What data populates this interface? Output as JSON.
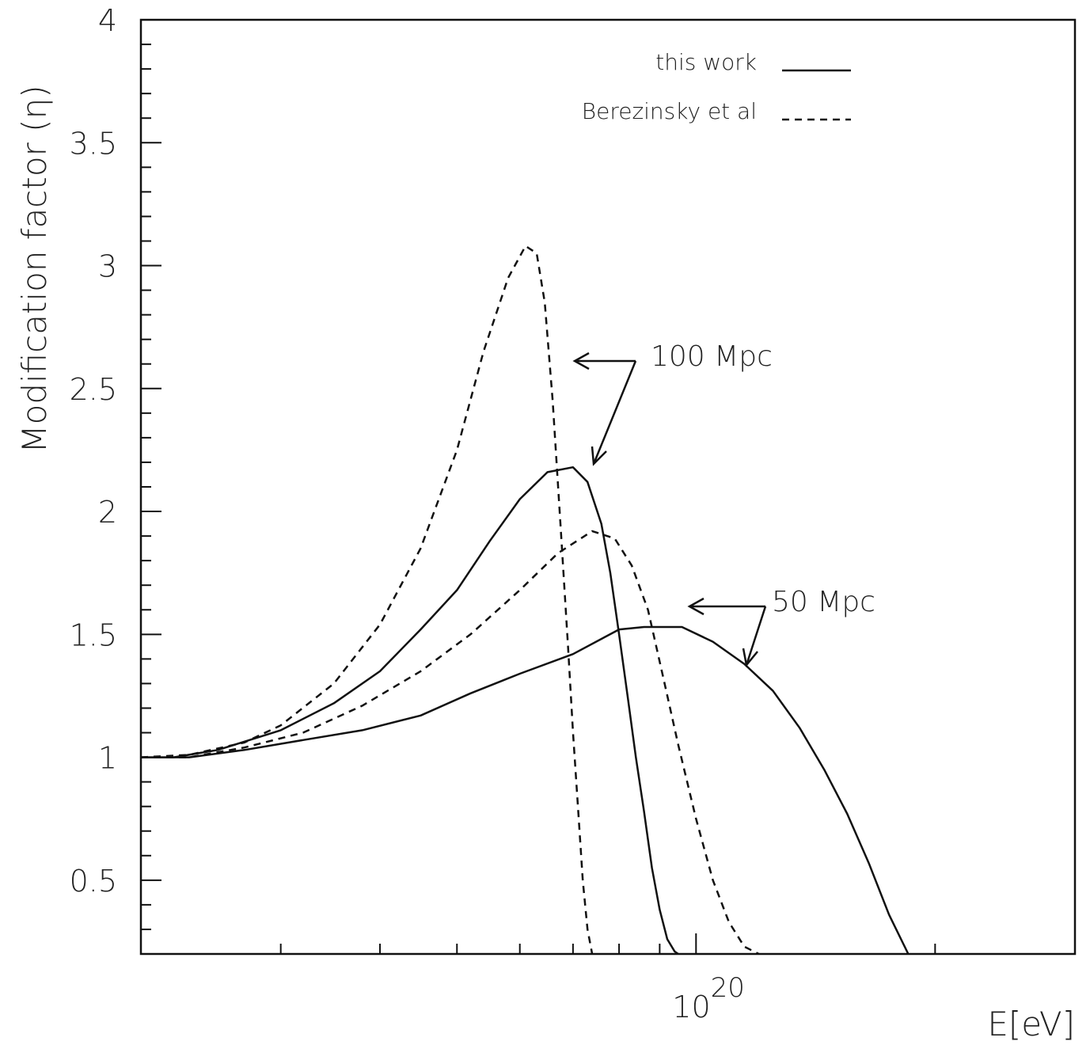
{
  "chart_data": {
    "type": "line",
    "xscale": "log",
    "xlim": [
      2e+19,
      3e+20
    ],
    "ylim": [
      0.2,
      4.0
    ],
    "grid": false,
    "legend_placement": "top-right",
    "xlabel": "E[eV]",
    "ylabel": "Modification factor (η)",
    "x_tick_label": {
      "base": "10",
      "exponent": "20",
      "value": 1e+20
    },
    "y_ticks": [
      0.5,
      1,
      1.5,
      2,
      2.5,
      3,
      3.5,
      4
    ],
    "y_tick_labels": [
      "0.5",
      "1",
      "1.5",
      "2",
      "2.5",
      "3",
      "3.5",
      "4"
    ],
    "legend": [
      {
        "label": "this work",
        "style": "solid"
      },
      {
        "label": "Berezinsky et al",
        "style": "dashed"
      }
    ],
    "annotations": [
      {
        "text": "100 Mpc",
        "value": [
          1.18e+20,
          2.58
        ]
      },
      {
        "text": "50 Mpc",
        "value": [
          1.47e+20,
          1.6
        ]
      }
    ],
    "series": [
      {
        "style": "solid",
        "distance": "100 Mpc",
        "x": [
          2e+19,
          2.2e+19,
          2.5e+19,
          3e+19,
          3.5e+19,
          4e+19,
          4.5e+19,
          5e+19,
          5.5e+19,
          6e+19,
          6.5e+19,
          7e+19,
          7.3e+19,
          7.6e+19,
          7.8e+19,
          8e+19,
          8.2e+19,
          8.4e+19,
          8.6e+19,
          8.8e+19,
          9e+19,
          9.2e+19,
          9.4e+19,
          9.5e+19
        ],
        "y": [
          1.0,
          1.0,
          1.03,
          1.11,
          1.22,
          1.35,
          1.52,
          1.68,
          1.88,
          2.05,
          2.16,
          2.18,
          2.12,
          1.95,
          1.75,
          1.5,
          1.25,
          1.0,
          0.78,
          0.55,
          0.38,
          0.26,
          0.21,
          0.2
        ]
      },
      {
        "style": "dashed",
        "distance": "100 Mpc",
        "x": [
          2e+19,
          2.3e+19,
          2.7e+19,
          3e+19,
          3.5e+19,
          4e+19,
          4.5e+19,
          5e+19,
          5.4e+19,
          5.8e+19,
          6.1e+19,
          6.3e+19,
          6.45e+19,
          6.6e+19,
          6.75e+19,
          6.9e+19,
          7e+19,
          7.1e+19,
          7.2e+19,
          7.3e+19,
          7.4e+19
        ],
        "y": [
          1.0,
          1.01,
          1.06,
          1.13,
          1.3,
          1.54,
          1.85,
          2.25,
          2.65,
          2.95,
          3.08,
          3.05,
          2.85,
          2.45,
          1.95,
          1.45,
          1.1,
          0.8,
          0.5,
          0.3,
          0.2
        ]
      },
      {
        "style": "solid",
        "distance": "50 Mpc",
        "x": [
          2e+19,
          2.3e+19,
          2.7e+19,
          3.2e+19,
          3.8e+19,
          4.5e+19,
          5.2e+19,
          6e+19,
          7e+19,
          8e+19,
          8.6e+19,
          9.6e+19,
          1.05e+20,
          1.15e+20,
          1.25e+20,
          1.35e+20,
          1.45e+20,
          1.55e+20,
          1.65e+20,
          1.75e+20,
          1.85e+20
        ],
        "y": [
          1.0,
          1.0,
          1.03,
          1.07,
          1.11,
          1.17,
          1.26,
          1.34,
          1.42,
          1.52,
          1.53,
          1.53,
          1.47,
          1.38,
          1.27,
          1.12,
          0.95,
          0.77,
          0.57,
          0.36,
          0.2
        ]
      },
      {
        "style": "dashed",
        "distance": "50 Mpc",
        "x": [
          2e+19,
          2.3e+19,
          2.7e+19,
          3.2e+19,
          3.8e+19,
          4.5e+19,
          5.2e+19,
          6e+19,
          6.7e+19,
          7.4e+19,
          7.9e+19,
          8.3e+19,
          8.7e+19,
          9.1e+19,
          9.5e+19,
          1e+20,
          1.05e+20,
          1.1e+20,
          1.15e+20,
          1.2e+20
        ],
        "y": [
          1.0,
          1.0,
          1.04,
          1.1,
          1.21,
          1.35,
          1.5,
          1.68,
          1.83,
          1.92,
          1.89,
          1.78,
          1.6,
          1.32,
          1.05,
          0.75,
          0.5,
          0.33,
          0.23,
          0.2
        ]
      }
    ]
  }
}
